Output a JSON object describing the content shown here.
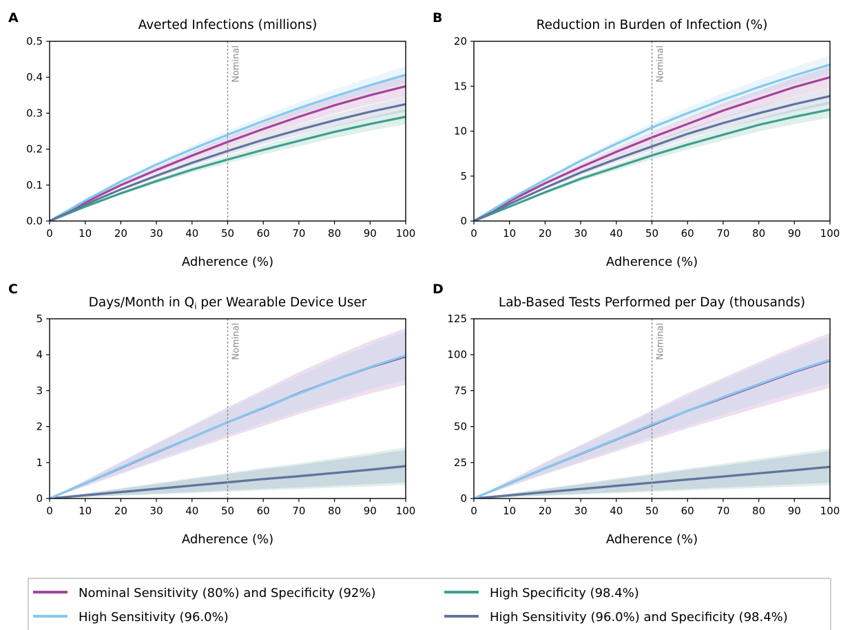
{
  "colors": {
    "nominal": "#a3449b",
    "high_sensitivity": "#84c9ec",
    "high_specificity": "#3f9f8e",
    "high_both": "#63739e",
    "nominal_line": "#8a8a8a"
  },
  "nominal_marker": {
    "x": 50,
    "label": "Nominal"
  },
  "legend": {
    "entries": [
      {
        "label": "Nominal Sensitivity (80%) and Specificity (92%)",
        "color": "#a3449b"
      },
      {
        "label": "High Specificity (98.4%)",
        "color": "#3f9f8e"
      },
      {
        "label": "High Sensitivity (96.0%)",
        "color": "#84c9ec"
      },
      {
        "label": "High Sensitivity (96.0%) and Specificity (98.4%)",
        "color": "#63739e"
      }
    ]
  },
  "chart_data": [
    {
      "panel": "A",
      "type": "line",
      "title": "Averted Infections (millions)",
      "xlabel": "Adherence (%)",
      "ylabel": "",
      "xlim": [
        0,
        100
      ],
      "ylim": [
        0,
        0.5
      ],
      "xticks": [
        0,
        10,
        20,
        30,
        40,
        50,
        60,
        70,
        80,
        90,
        100
      ],
      "yticks": [
        0,
        0.1,
        0.2,
        0.3,
        0.4,
        0.5
      ],
      "ytick_labels": [
        "0.0",
        "0.1",
        "0.2",
        "0.3",
        "0.4",
        "0.5"
      ],
      "x": [
        0,
        10,
        20,
        30,
        40,
        50,
        60,
        70,
        80,
        90,
        100
      ],
      "series": [
        {
          "key": "nominal",
          "values": [
            0,
            0.052,
            0.1,
            0.142,
            0.182,
            0.22,
            0.256,
            0.29,
            0.322,
            0.35,
            0.375
          ],
          "band": 0.022
        },
        {
          "key": "high_sensitivity",
          "values": [
            0,
            0.057,
            0.11,
            0.157,
            0.2,
            0.24,
            0.278,
            0.314,
            0.347,
            0.378,
            0.407
          ],
          "band": 0.018
        },
        {
          "key": "high_specificity",
          "values": [
            0,
            0.04,
            0.077,
            0.111,
            0.143,
            0.171,
            0.198,
            0.223,
            0.248,
            0.27,
            0.29
          ],
          "band": 0.016
        },
        {
          "key": "high_both",
          "values": [
            0,
            0.046,
            0.088,
            0.126,
            0.162,
            0.195,
            0.226,
            0.254,
            0.28,
            0.304,
            0.325
          ],
          "band": 0.016
        }
      ]
    },
    {
      "panel": "B",
      "type": "line",
      "title": "Reduction in Burden of Infection (%)",
      "xlabel": "Adherence (%)",
      "ylabel": "",
      "xlim": [
        0,
        100
      ],
      "ylim": [
        0,
        20
      ],
      "xticks": [
        0,
        10,
        20,
        30,
        40,
        50,
        60,
        70,
        80,
        90,
        100
      ],
      "yticks": [
        0,
        5,
        10,
        15,
        20
      ],
      "ytick_labels": [
        "0",
        "5",
        "10",
        "15",
        "20"
      ],
      "x": [
        0,
        10,
        20,
        30,
        40,
        50,
        60,
        70,
        80,
        90,
        100
      ],
      "series": [
        {
          "key": "nominal",
          "values": [
            0,
            2.2,
            4.2,
            6.0,
            7.7,
            9.3,
            10.8,
            12.3,
            13.6,
            14.9,
            16.0
          ],
          "band": 0.9
        },
        {
          "key": "high_sensitivity",
          "values": [
            0,
            2.4,
            4.6,
            6.7,
            8.6,
            10.4,
            12.0,
            13.5,
            14.9,
            16.2,
            17.4
          ],
          "band": 0.8
        },
        {
          "key": "high_specificity",
          "values": [
            0,
            1.6,
            3.2,
            4.7,
            6.0,
            7.3,
            8.5,
            9.6,
            10.7,
            11.6,
            12.4
          ],
          "band": 0.7
        },
        {
          "key": "high_both",
          "values": [
            0,
            1.9,
            3.7,
            5.4,
            6.9,
            8.3,
            9.7,
            10.9,
            12.0,
            13.0,
            13.9
          ],
          "band": 0.7
        }
      ]
    },
    {
      "panel": "C",
      "type": "line",
      "title": "Days/Month in Q",
      "title_sub": "i",
      "title_rest": " per Wearable Device User",
      "xlabel": "Adherence (%)",
      "ylabel": "",
      "xlim": [
        0,
        100
      ],
      "ylim": [
        0,
        5
      ],
      "xticks": [
        0,
        10,
        20,
        30,
        40,
        50,
        60,
        70,
        80,
        90,
        100
      ],
      "yticks": [
        0,
        1,
        2,
        3,
        4,
        5
      ],
      "ytick_labels": [
        "0",
        "1",
        "2",
        "3",
        "4",
        "5"
      ],
      "x": [
        0,
        10,
        20,
        30,
        40,
        50,
        60,
        70,
        80,
        90,
        100
      ],
      "series": [
        {
          "key": "high_specificity",
          "values": [
            0,
            0.09,
            0.18,
            0.27,
            0.36,
            0.45,
            0.54,
            0.62,
            0.71,
            0.8,
            0.9
          ],
          "band_rel": 0.58
        },
        {
          "key": "high_both",
          "values": [
            0,
            0.09,
            0.18,
            0.27,
            0.36,
            0.45,
            0.54,
            0.62,
            0.71,
            0.8,
            0.9
          ],
          "band_rel": 0.5
        },
        {
          "key": "nominal",
          "values": [
            0,
            0.42,
            0.85,
            1.28,
            1.7,
            2.12,
            2.52,
            2.93,
            3.3,
            3.65,
            3.95
          ],
          "band_rel": 0.2
        },
        {
          "key": "high_sensitivity",
          "values": [
            0,
            0.42,
            0.86,
            1.29,
            1.7,
            2.12,
            2.53,
            2.92,
            3.3,
            3.66,
            3.98
          ],
          "band_rel": 0.17
        }
      ]
    },
    {
      "panel": "D",
      "type": "line",
      "title": "Lab-Based Tests Performed per Day (thousands)",
      "xlabel": "Adherence (%)",
      "ylabel": "",
      "xlim": [
        0,
        100
      ],
      "ylim": [
        0,
        125
      ],
      "xticks": [
        0,
        10,
        20,
        30,
        40,
        50,
        60,
        70,
        80,
        90,
        100
      ],
      "yticks": [
        0,
        25,
        50,
        75,
        100,
        125
      ],
      "ytick_labels": [
        "0",
        "25",
        "50",
        "75",
        "100",
        "125"
      ],
      "x": [
        0,
        10,
        20,
        30,
        40,
        50,
        60,
        70,
        80,
        90,
        100
      ],
      "series": [
        {
          "key": "high_specificity",
          "values": [
            0,
            2.2,
            4.4,
            6.6,
            8.8,
            11,
            13.2,
            15.3,
            17.5,
            19.7,
            22
          ],
          "band_rel": 0.58
        },
        {
          "key": "high_both",
          "values": [
            0,
            2.2,
            4.4,
            6.6,
            8.8,
            11,
            13.2,
            15.3,
            17.5,
            19.7,
            22
          ],
          "band_rel": 0.5
        },
        {
          "key": "nominal",
          "values": [
            0,
            10.5,
            21,
            31,
            41,
            51,
            61,
            70,
            79,
            88,
            96
          ],
          "band_rel": 0.2
        },
        {
          "key": "high_sensitivity",
          "values": [
            0,
            10.5,
            21,
            31.2,
            41.2,
            51.5,
            61,
            70.5,
            79.5,
            88.5,
            96.5
          ],
          "band_rel": 0.17
        }
      ]
    }
  ]
}
